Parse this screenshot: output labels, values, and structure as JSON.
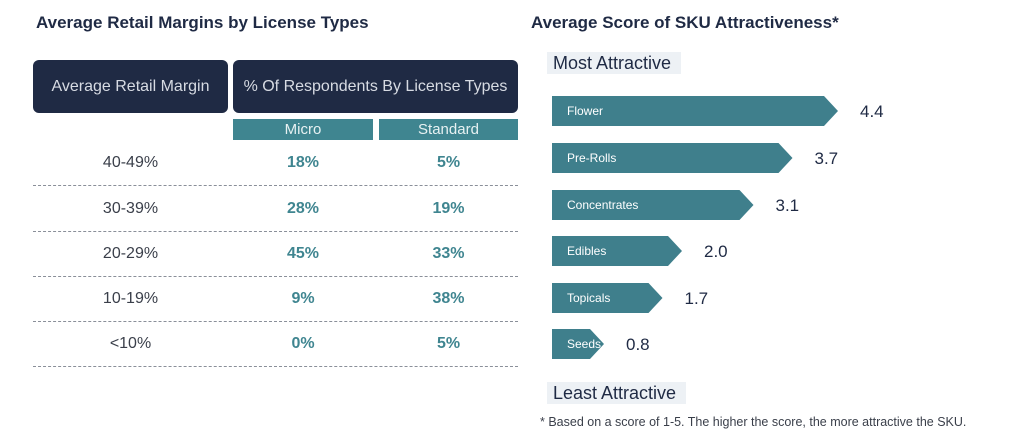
{
  "left_table": {
    "title": "Average Retail Margins by License Types",
    "header_margin": "Average Retail Margin",
    "header_respondents": "% Of Respondents By License Types",
    "sub_micro": "Micro",
    "sub_standard": "Standard",
    "rows": [
      {
        "range": "40-49%",
        "micro": "18%",
        "standard": "5%"
      },
      {
        "range": "30-39%",
        "micro": "28%",
        "standard": "19%"
      },
      {
        "range": "20-29%",
        "micro": "45%",
        "standard": "33%"
      },
      {
        "range": "10-19%",
        "micro": "9%",
        "standard": "38%"
      },
      {
        "range": "<10%",
        "micro": "0%",
        "standard": "5%"
      }
    ]
  },
  "chart_data": {
    "type": "bar",
    "orientation": "horizontal",
    "title": "Average Score of SKU Attractiveness*",
    "top_label": "Most Attractive",
    "bottom_label": "Least Attractive",
    "categories": [
      "Flower",
      "Pre-Rolls",
      "Concentrates",
      "Edibles",
      "Topicals",
      "Seeds"
    ],
    "values": [
      4.4,
      3.7,
      3.1,
      2.0,
      1.7,
      0.8
    ],
    "value_labels": [
      "4.4",
      "3.7",
      "3.1",
      "2.0",
      "1.7",
      "0.8"
    ],
    "xlim": [
      0,
      5
    ],
    "bar_color": "#3f7f8c",
    "footnote": "* Based on a score of 1-5. The higher the score, the more attractive the SKU."
  }
}
